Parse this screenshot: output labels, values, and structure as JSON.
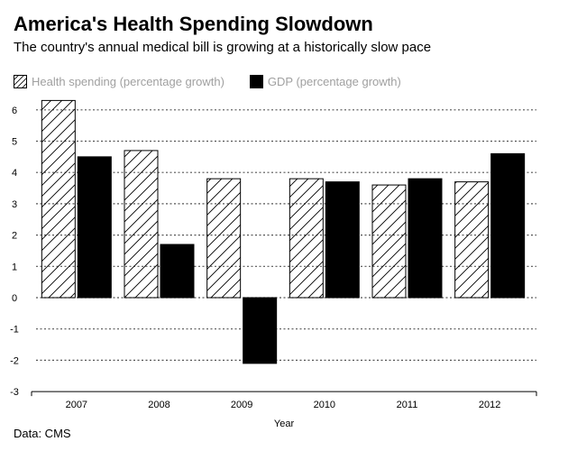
{
  "header": {
    "title": "America's Health Spending Slowdown",
    "subtitle": "The country's annual medical bill is growing at a historically slow pace"
  },
  "footer": {
    "source": "Data: CMS"
  },
  "colors": {
    "gdp": "#000000",
    "health": "#ffffff",
    "grid": "#555555",
    "legend_text": "#a0a0a0"
  },
  "chart_data": {
    "type": "bar",
    "title": "America's Health Spending Slowdown",
    "subtitle": "The country's annual medical bill is growing at a historically slow pace",
    "xlabel": "Year",
    "ylabel": "",
    "categories": [
      "2007",
      "2008",
      "2009",
      "2010",
      "2011",
      "2012"
    ],
    "series": [
      {
        "name": "Health spending (percentage growth)",
        "pattern": "diagonal-hatch",
        "values": [
          6.3,
          4.7,
          3.8,
          3.8,
          3.6,
          3.7
        ]
      },
      {
        "name": "GDP (percentage growth)",
        "pattern": "solid-black",
        "values": [
          4.5,
          1.7,
          -2.1,
          3.7,
          3.8,
          4.6
        ]
      }
    ],
    "ylim": [
      -3,
      6.5
    ],
    "yticks": [
      -3,
      -2,
      -1,
      0,
      1,
      2,
      3,
      4,
      5,
      6
    ],
    "grid": true,
    "legend_position": "top-left"
  }
}
